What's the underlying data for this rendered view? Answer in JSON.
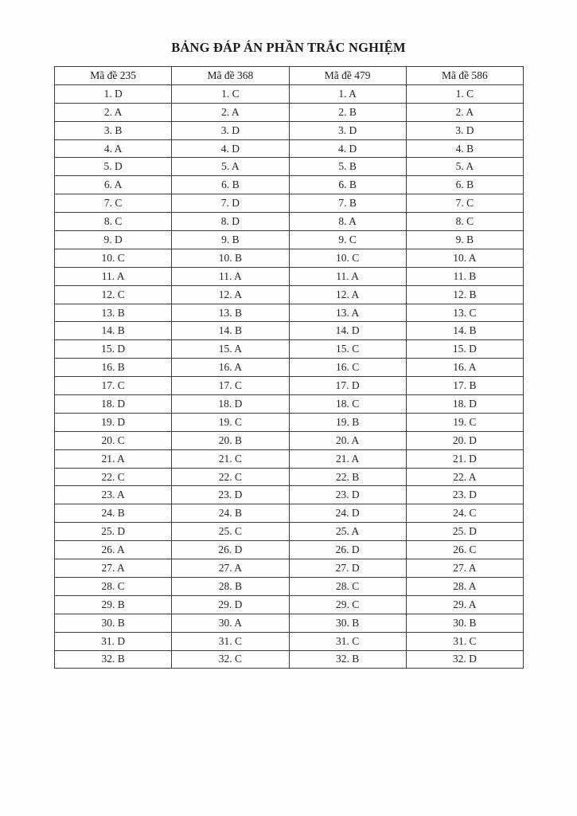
{
  "page": {
    "title": "BẢNG ĐÁP ÁN PHẦN TRẮC NGHIỆM"
  },
  "table": {
    "num_questions": 32,
    "columns": [
      {
        "header": "Mã đề 235",
        "answers": [
          "D",
          "A",
          "B",
          "A",
          "D",
          "A",
          "C",
          "C",
          "D",
          "C",
          "A",
          "C",
          "B",
          "B",
          "D",
          "B",
          "C",
          "D",
          "D",
          "C",
          "A",
          "C",
          "A",
          "B",
          "D",
          "A",
          "A",
          "C",
          "B",
          "B",
          "D",
          "B"
        ]
      },
      {
        "header": "Mã đề 368",
        "answers": [
          "C",
          "A",
          "D",
          "D",
          "A",
          "B",
          "D",
          "D",
          "B",
          "B",
          "A",
          "A",
          "B",
          "B",
          "A",
          "A",
          "C",
          "D",
          "C",
          "B",
          "C",
          "C",
          "D",
          "B",
          "C",
          "D",
          "A",
          "B",
          "D",
          "A",
          "C",
          "C"
        ]
      },
      {
        "header": "Mã đề 479",
        "answers": [
          "A",
          "B",
          "D",
          "D",
          "B",
          "B",
          "B",
          "A",
          "C",
          "C",
          "A",
          "A",
          "A",
          "D",
          "C",
          "C",
          "D",
          "C",
          "B",
          "A",
          "A",
          "B",
          "D",
          "D",
          "A",
          "D",
          "D",
          "C",
          "C",
          "B",
          "C",
          "B"
        ]
      },
      {
        "header": "Mã đề 586",
        "answers": [
          "C",
          "A",
          "D",
          "B",
          "A",
          "B",
          "C",
          "C",
          "B",
          "A",
          "B",
          "B",
          "C",
          "B",
          "D",
          "A",
          "B",
          "D",
          "C",
          "D",
          "D",
          "A",
          "D",
          "C",
          "D",
          "C",
          "A",
          "A",
          "A",
          "B",
          "C",
          "D"
        ]
      }
    ]
  },
  "colors": {
    "background": "#ffffff",
    "text": "#222222",
    "border": "#3c3c3c"
  }
}
